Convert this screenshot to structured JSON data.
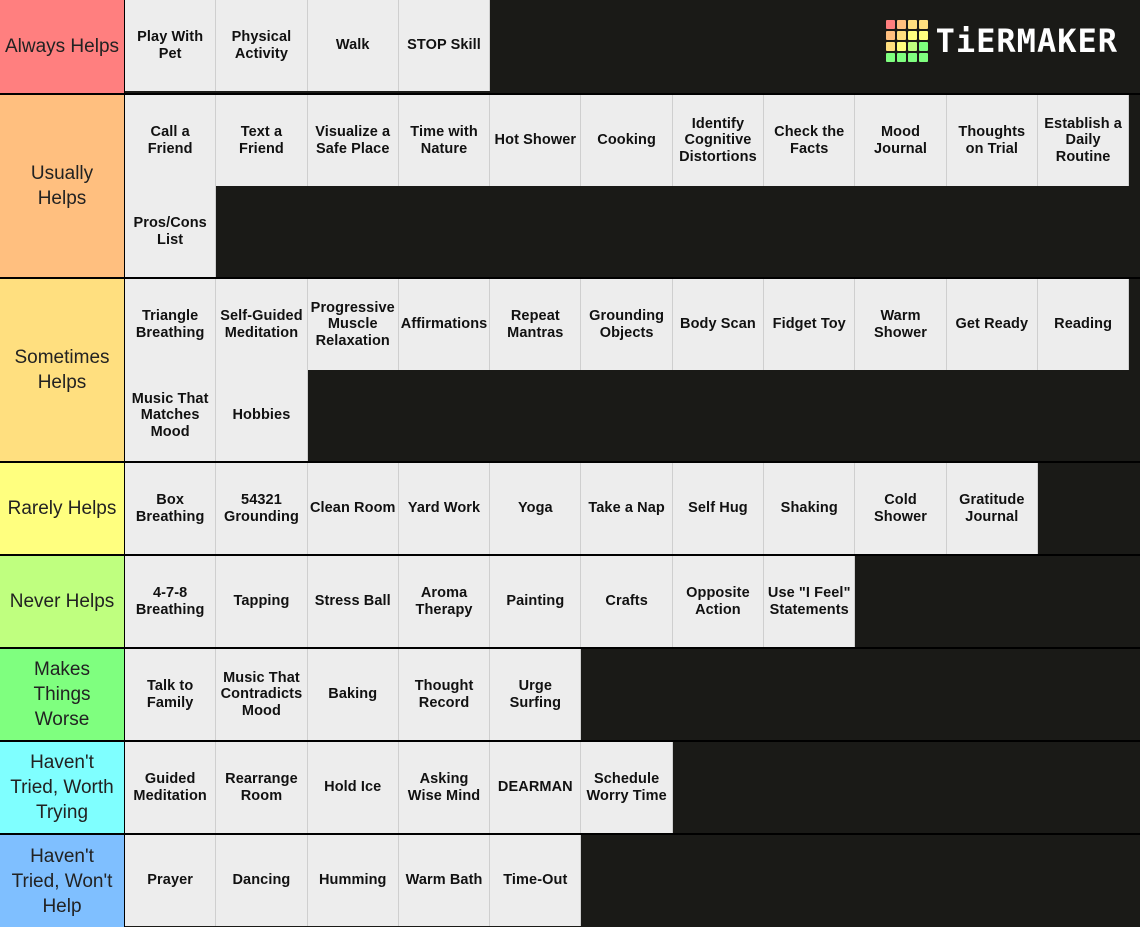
{
  "logo": {
    "text": "TiERMAKER",
    "grid_colors": [
      "#ff7f7f",
      "#ffbf7f",
      "#ffdf7f",
      "#ffdf7f",
      "#ffbf7f",
      "#ffdf7f",
      "#ffff7f",
      "#ffff7f",
      "#ffdf7f",
      "#ffff7f",
      "#bfff7f",
      "#7fff7f",
      "#7fff7f",
      "#7fff7f",
      "#7fff7f",
      "#7fff7f"
    ]
  },
  "tiers": [
    {
      "label": "Always Helps",
      "color": "#ff7f7f",
      "items": [
        "Play With Pet",
        "Physical Activity",
        "Walk",
        "STOP Skill"
      ]
    },
    {
      "label": "Usually Helps",
      "color": "#ffbf7f",
      "items": [
        "Call a Friend",
        "Text a Friend",
        "Visualize a Safe Place",
        "Time with Nature",
        "Hot Shower",
        "Cooking",
        "Identify Cognitive Distortions",
        "Check the Facts",
        "Mood Journal",
        "Thoughts on Trial",
        "Establish a Daily Routine",
        "Pros/Cons List"
      ]
    },
    {
      "label": "Sometimes Helps",
      "color": "#ffdf7f",
      "items": [
        "Triangle Breathing",
        "Self-Guided Meditation",
        "Progressive Muscle Relaxation",
        "Affirmations",
        "Repeat Mantras",
        "Grounding Objects",
        "Body Scan",
        "Fidget Toy",
        "Warm Shower",
        "Get Ready",
        "Reading",
        "Music That Matches Mood",
        "Hobbies"
      ]
    },
    {
      "label": "Rarely Helps",
      "color": "#ffff7f",
      "items": [
        "Box Breathing",
        "54321 Grounding",
        "Clean Room",
        "Yard Work",
        "Yoga",
        "Take a Nap",
        "Self Hug",
        "Shaking",
        "Cold Shower",
        "Gratitude Journal"
      ]
    },
    {
      "label": "Never Helps",
      "color": "#bfff7f",
      "items": [
        "4-7-8 Breathing",
        "Tapping",
        "Stress Ball",
        "Aroma Therapy",
        "Painting",
        "Crafts",
        "Opposite Action",
        "Use \"I Feel\" Statements"
      ]
    },
    {
      "label": "Makes Things Worse",
      "color": "#7fff7f",
      "items": [
        "Talk to Family",
        "Music That Contradicts Mood",
        "Baking",
        "Thought Record",
        "Urge Surfing"
      ]
    },
    {
      "label": "Haven't Tried, Worth Trying",
      "color": "#7fffff",
      "items": [
        "Guided Meditation",
        "Rearrange Room",
        "Hold Ice",
        "Asking Wise Mind",
        "DEARMAN",
        "Schedule Worry Time"
      ]
    },
    {
      "label": "Haven't Tried, Won't Help",
      "color": "#7fbfff",
      "items": [
        "Prayer",
        "Dancing",
        "Humming",
        "Warm Bath",
        "Time-Out"
      ]
    }
  ]
}
